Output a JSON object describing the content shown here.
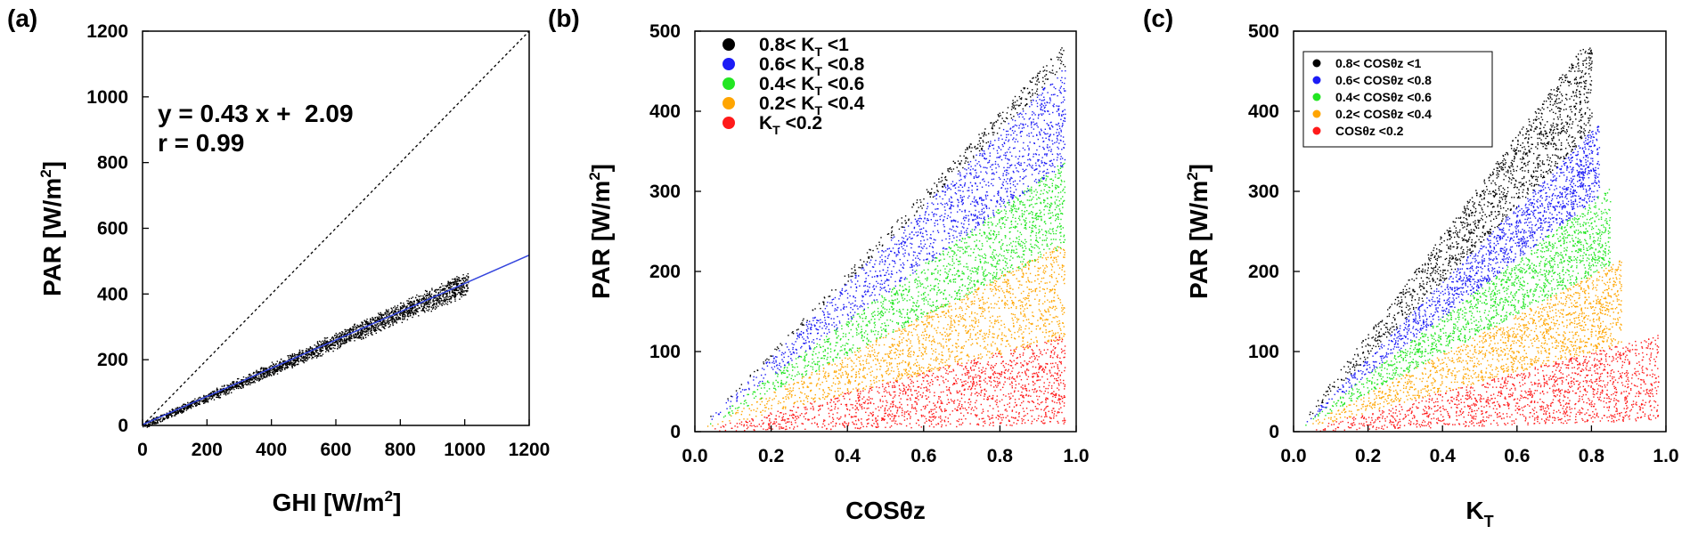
{
  "chart_data": [
    {
      "panel": "(a)",
      "type": "scatter",
      "xlabel": "GHI [W/m",
      "xlabel_sup": "2",
      "xlabel_end": "]",
      "ylabel": "PAR [W/m",
      "ylabel_sup": "2",
      "ylabel_end": "]",
      "xlim": [
        0,
        1200
      ],
      "ylim": [
        0,
        1200
      ],
      "xticks": [
        0,
        200,
        400,
        600,
        800,
        1000,
        1200
      ],
      "yticks": [
        0,
        200,
        400,
        600,
        800,
        1000,
        1200
      ],
      "equation": "y = 0.43 x +  2.09",
      "r_label": "r = 0.99",
      "fit": {
        "slope": 0.43,
        "intercept": 2.09,
        "color": "#3344dd"
      },
      "one_to_one_line": true,
      "scatter": {
        "color": "#000000",
        "x_min": 0,
        "x_max": 1010,
        "ratio_min": 0.4,
        "ratio_max": 0.46
      }
    },
    {
      "panel": "(b)",
      "type": "scatter",
      "xlabel": "COSθz",
      "ylabel": "PAR [W/m",
      "ylabel_sup": "2",
      "ylabel_end": "]",
      "xlim": [
        0,
        1.0
      ],
      "ylim": [
        0,
        500
      ],
      "xticks": [
        "0.0",
        "0.2",
        "0.4",
        "0.6",
        "0.8",
        "1.0"
      ],
      "yticks": [
        0,
        100,
        200,
        300,
        400,
        500
      ],
      "series": [
        {
          "name": "0.8< K",
          "sub": "T",
          "tail": " <1",
          "color": "#000000",
          "slope_min": 470,
          "slope_max": 500,
          "x_max": 0.97
        },
        {
          "name": "0.6< K",
          "sub": "T",
          "tail": " <0.8",
          "color": "#1c1cf5",
          "slope_min": 345,
          "slope_max": 470,
          "x_max": 0.97
        },
        {
          "name": "0.4< K",
          "sub": "T",
          "tail": " <0.6",
          "color": "#22e622",
          "slope_min": 240,
          "slope_max": 350,
          "x_max": 0.97
        },
        {
          "name": "0.2< K",
          "sub": "T",
          "tail": " <0.4",
          "color": "#ffa500",
          "slope_min": 120,
          "slope_max": 245,
          "x_max": 0.97
        },
        {
          "name": "K",
          "sub": "T",
          "tail": " <0.2",
          "color": "#ff1a1a",
          "slope_min": 10,
          "slope_max": 125,
          "x_max": 0.97
        }
      ]
    },
    {
      "panel": "(c)",
      "type": "scatter",
      "xlabel": "K",
      "xlabel_sub": "T",
      "ylabel": "PAR [W/m",
      "ylabel_sup": "2",
      "ylabel_end": "]",
      "xlim": [
        0,
        1.0
      ],
      "ylim": [
        0,
        500
      ],
      "xticks": [
        "0.0",
        "0.2",
        "0.4",
        "0.6",
        "0.8",
        "1.0"
      ],
      "yticks": [
        0,
        100,
        200,
        300,
        400,
        500
      ],
      "series": [
        {
          "name": "0.8< COSθz <1",
          "color": "#000000",
          "slope_min": 470,
          "slope_max": 620,
          "x_max": 0.8
        },
        {
          "name": "0.6< COSθz <0.8",
          "color": "#1c1cf5",
          "slope_min": 360,
          "slope_max": 470,
          "x_max": 0.82
        },
        {
          "name": "0.4< COSθz <0.6",
          "color": "#22e622",
          "slope_min": 245,
          "slope_max": 360,
          "x_max": 0.85
        },
        {
          "name": "0.2< COSθz <0.4",
          "color": "#ffa500",
          "slope_min": 125,
          "slope_max": 245,
          "x_max": 0.88
        },
        {
          "name": "COSθz <0.2",
          "color": "#ff1a1a",
          "slope_min": 15,
          "slope_max": 125,
          "x_max": 0.98
        }
      ]
    }
  ]
}
